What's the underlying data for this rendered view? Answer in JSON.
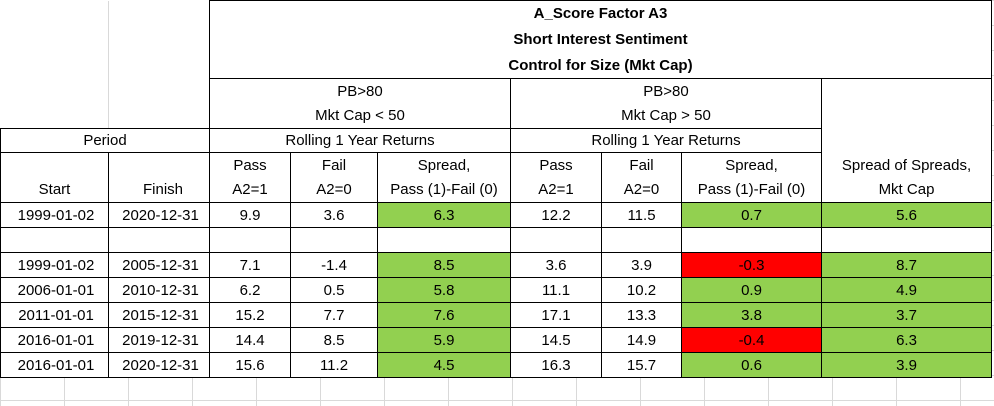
{
  "title": {
    "line1": "A_Score Factor A3",
    "line2": "Short Interest Sentiment",
    "line3": "Control for Size (Mkt Cap)"
  },
  "groups": [
    {
      "line1": "PB>80",
      "line2": "Mkt Cap < 50",
      "line3": "Rolling 1 Year Returns"
    },
    {
      "line1": "PB>80",
      "line2": "Mkt Cap > 50",
      "line3": "Rolling 1 Year Returns"
    }
  ],
  "period_label": "Period",
  "col_headers": {
    "start": "Start",
    "finish": "Finish",
    "pass_top": "Pass",
    "pass_bottom": "A2=1",
    "fail_top": "Fail",
    "fail_bottom": "A2=0",
    "spread_top": "Spread,",
    "spread_bottom": "Pass (1)-Fail (0)",
    "sos_top": "Spread of Spreads,",
    "sos_bottom": "Mkt Cap"
  },
  "colors": {
    "positive": "#92d050",
    "negative": "#ff0000"
  },
  "rows": [
    {
      "start": "1999-01-02",
      "finish": "2020-12-31",
      "g1_pass": "9.9",
      "g1_fail": "3.6",
      "g1_spread": "6.3",
      "g2_pass": "12.2",
      "g2_fail": "11.5",
      "g2_spread": "0.7",
      "sos": "5.6"
    },
    {
      "start": "1999-01-02",
      "finish": "2005-12-31",
      "g1_pass": "7.1",
      "g1_fail": "-1.4",
      "g1_spread": "8.5",
      "g2_pass": "3.6",
      "g2_fail": "3.9",
      "g2_spread": "-0.3",
      "sos": "8.7"
    },
    {
      "start": "2006-01-01",
      "finish": "2010-12-31",
      "g1_pass": "6.2",
      "g1_fail": "0.5",
      "g1_spread": "5.8",
      "g2_pass": "11.1",
      "g2_fail": "10.2",
      "g2_spread": "0.9",
      "sos": "4.9"
    },
    {
      "start": "2011-01-01",
      "finish": "2015-12-31",
      "g1_pass": "15.2",
      "g1_fail": "7.7",
      "g1_spread": "7.6",
      "g2_pass": "17.1",
      "g2_fail": "13.3",
      "g2_spread": "3.8",
      "sos": "3.7"
    },
    {
      "start": "2016-01-01",
      "finish": "2019-12-31",
      "g1_pass": "14.4",
      "g1_fail": "8.5",
      "g1_spread": "5.9",
      "g2_pass": "14.5",
      "g2_fail": "14.9",
      "g2_spread": "-0.4",
      "sos": "6.3"
    },
    {
      "start": "2016-01-01",
      "finish": "2020-12-31",
      "g1_pass": "15.6",
      "g1_fail": "11.2",
      "g1_spread": "4.5",
      "g2_pass": "16.3",
      "g2_fail": "15.7",
      "g2_spread": "0.6",
      "sos": "3.9"
    }
  ]
}
